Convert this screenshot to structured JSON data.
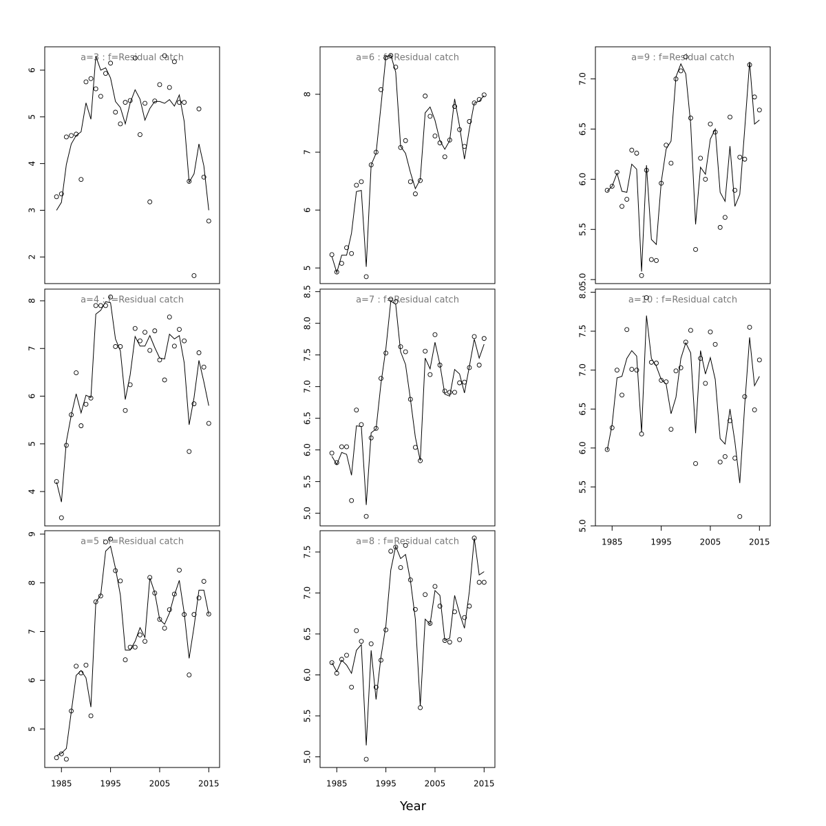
{
  "xlabel": "Year",
  "x": [
    1984,
    1985,
    1986,
    1987,
    1988,
    1989,
    1990,
    1991,
    1992,
    1993,
    1994,
    1995,
    1996,
    1997,
    1998,
    1999,
    2000,
    2001,
    2002,
    2003,
    2004,
    2005,
    2006,
    2007,
    2008,
    2009,
    2010,
    2011,
    2012,
    2013,
    2014,
    2015
  ],
  "xlim": [
    1981.6,
    2017.2
  ],
  "xticks": [
    1985,
    1995,
    2005,
    2015
  ],
  "chart_data": [
    {
      "type": "line",
      "title": "a=3  :  f=Residual catch",
      "ylim": [
        1.43,
        6.5
      ],
      "yticks": [
        2,
        3,
        4,
        5,
        6
      ],
      "series": [
        {
          "style": "points",
          "color": "#000000",
          "values": [
            3.29,
            3.35,
            4.57,
            4.6,
            4.63,
            3.66,
            5.75,
            5.82,
            5.6,
            5.44,
            5.93,
            6.15,
            5.1,
            4.85,
            5.31,
            5.35,
            6.26,
            4.62,
            5.29,
            3.18,
            5.34,
            5.69,
            6.31,
            5.63,
            6.18,
            5.31,
            5.31,
            3.62,
            1.6,
            5.17,
            3.71,
            2.77
          ]
        },
        {
          "style": "line",
          "color": "#000000",
          "values": [
            3.0,
            3.17,
            3.98,
            4.42,
            4.6,
            4.68,
            5.3,
            4.95,
            6.3,
            6.0,
            6.05,
            5.83,
            5.33,
            5.2,
            4.85,
            5.3,
            5.58,
            5.38,
            4.93,
            5.18,
            5.33,
            5.33,
            5.29,
            5.37,
            5.23,
            5.47,
            4.9,
            3.6,
            3.78,
            4.42,
            3.95,
            3.0
          ]
        }
      ]
    },
    {
      "type": "line",
      "title": "a=4  :  f=Residual catch",
      "ylim": [
        3.28,
        8.245
      ],
      "yticks": [
        4,
        5,
        6,
        7,
        8
      ],
      "series": [
        {
          "style": "points",
          "color": "#000000",
          "values": [
            4.21,
            3.45,
            4.97,
            5.61,
            6.49,
            5.38,
            5.83,
            5.96,
            7.9,
            7.9,
            7.9,
            8.08,
            7.04,
            7.04,
            5.7,
            6.24,
            7.42,
            7.16,
            7.34,
            6.96,
            7.37,
            6.76,
            6.34,
            7.66,
            7.05,
            7.4,
            7.16,
            4.84,
            5.84,
            6.91,
            6.61,
            5.43
          ]
        },
        {
          "style": "line",
          "color": "#000000",
          "values": [
            4.2,
            3.78,
            5.05,
            5.6,
            6.05,
            5.65,
            6.02,
            5.97,
            7.72,
            7.8,
            7.98,
            7.96,
            7.2,
            6.95,
            5.93,
            6.45,
            7.25,
            7.05,
            7.05,
            7.27,
            7.02,
            6.8,
            6.78,
            7.3,
            7.2,
            7.27,
            6.7,
            5.4,
            5.97,
            6.75,
            6.3,
            5.8
          ]
        }
      ]
    },
    {
      "type": "line",
      "title": "a=5  :  f=Residual catch",
      "ylim": [
        4.21,
        9.07
      ],
      "yticks": [
        5,
        6,
        7,
        8,
        9
      ],
      "series": [
        {
          "style": "points",
          "color": "#000000",
          "values": [
            4.41,
            4.49,
            4.38,
            5.37,
            6.29,
            6.15,
            6.31,
            5.27,
            7.61,
            7.73,
            8.84,
            8.9,
            8.25,
            8.04,
            6.42,
            6.68,
            6.68,
            6.93,
            6.8,
            8.11,
            7.79,
            7.25,
            7.07,
            7.45,
            7.77,
            8.26,
            7.35,
            6.11,
            7.35,
            7.69,
            8.03,
            7.36
          ]
        },
        {
          "style": "line",
          "color": "#000000",
          "values": [
            4.45,
            4.5,
            4.6,
            5.35,
            6.1,
            6.2,
            6.05,
            5.45,
            7.6,
            7.75,
            8.65,
            8.75,
            8.3,
            7.75,
            6.62,
            6.62,
            6.8,
            7.08,
            6.88,
            8.1,
            7.8,
            7.25,
            7.15,
            7.38,
            7.75,
            8.05,
            7.38,
            6.45,
            7.1,
            7.85,
            7.85,
            7.35
          ]
        }
      ]
    },
    {
      "type": "line",
      "title": "a=6  :  f=Residual catch",
      "ylim": [
        4.73,
        8.82
      ],
      "yticks": [
        5,
        6,
        7,
        8
      ],
      "series": [
        {
          "style": "points",
          "color": "#000000",
          "values": [
            5.23,
            4.93,
            5.08,
            5.35,
            5.25,
            6.43,
            6.49,
            4.85,
            6.78,
            7.0,
            8.08,
            8.63,
            8.67,
            8.47,
            7.08,
            7.2,
            6.49,
            6.28,
            6.51,
            7.97,
            7.62,
            7.28,
            7.16,
            6.92,
            7.21,
            7.79,
            7.39,
            7.1,
            7.53,
            7.85,
            7.91,
            7.99
          ]
        },
        {
          "style": "line",
          "color": "#000000",
          "values": [
            5.2,
            4.92,
            5.22,
            5.22,
            5.6,
            6.32,
            6.34,
            5.02,
            6.78,
            6.98,
            7.8,
            8.65,
            8.68,
            8.38,
            7.1,
            6.98,
            6.65,
            6.37,
            6.53,
            7.68,
            7.78,
            7.55,
            7.2,
            7.05,
            7.2,
            7.92,
            7.45,
            6.88,
            7.4,
            7.85,
            7.88,
            7.98
          ]
        }
      ]
    },
    {
      "type": "line",
      "title": "a=7  :  f=Residual catch",
      "ylim": [
        4.8,
        8.54
      ],
      "yticks": [
        {
          "value": 5,
          "label": "5.0"
        },
        5.5,
        {
          "value": 6,
          "label": "6.0"
        },
        6.5,
        {
          "value": 7,
          "label": "7.0"
        },
        7.5,
        {
          "value": 8,
          "label": "8.0"
        },
        8.5
      ],
      "series": [
        {
          "style": "points",
          "color": "#000000",
          "values": [
            5.95,
            5.8,
            6.05,
            6.05,
            5.2,
            6.63,
            6.4,
            4.95,
            6.19,
            6.34,
            7.13,
            7.53,
            8.38,
            8.34,
            7.63,
            7.55,
            6.8,
            6.04,
            5.83,
            7.56,
            7.19,
            7.82,
            7.34,
            6.93,
            6.91,
            6.91,
            7.06,
            7.07,
            7.3,
            7.79,
            7.34,
            7.76
          ]
        },
        {
          "style": "line",
          "color": "#000000",
          "values": [
            5.9,
            5.77,
            5.96,
            5.93,
            5.6,
            6.38,
            6.37,
            5.13,
            6.27,
            6.33,
            7.05,
            7.6,
            8.35,
            8.3,
            7.55,
            7.35,
            6.8,
            6.2,
            5.83,
            7.45,
            7.28,
            7.7,
            7.35,
            6.88,
            6.85,
            7.27,
            7.2,
            6.9,
            7.32,
            7.75,
            7.45,
            7.67
          ]
        }
      ]
    },
    {
      "type": "line",
      "title": "a=8  :  f=Residual catch",
      "ylim": [
        4.87,
        7.76
      ],
      "yticks": [
        {
          "value": 5,
          "label": "5.0"
        },
        5.5,
        {
          "value": 6,
          "label": "6.0"
        },
        6.5,
        {
          "value": 7,
          "label": "7.0"
        },
        7.5
      ],
      "series": [
        {
          "style": "points",
          "color": "#000000",
          "values": [
            6.15,
            6.02,
            6.19,
            6.24,
            5.85,
            6.54,
            6.41,
            4.97,
            6.38,
            5.85,
            6.18,
            6.55,
            7.51,
            7.56,
            7.31,
            7.58,
            7.16,
            6.8,
            5.6,
            6.98,
            6.63,
            7.08,
            6.84,
            6.42,
            6.4,
            6.77,
            6.43,
            6.7,
            6.84,
            7.67,
            7.13,
            7.13
          ]
        },
        {
          "style": "line",
          "color": "#000000",
          "values": [
            6.15,
            6.04,
            6.18,
            6.12,
            6.02,
            6.3,
            6.37,
            5.14,
            6.3,
            5.7,
            6.22,
            6.6,
            7.28,
            7.57,
            7.42,
            7.47,
            7.15,
            6.68,
            5.62,
            6.68,
            6.62,
            7.03,
            6.97,
            6.42,
            6.45,
            6.97,
            6.75,
            6.57,
            7.02,
            7.67,
            7.22,
            7.26
          ]
        }
      ]
    },
    {
      "type": "line",
      "title": "a=9  :  f=Residual catch",
      "ylim": [
        4.96,
        7.32
      ],
      "yticks": [
        {
          "value": 5,
          "label": "5.0"
        },
        5.5,
        {
          "value": 6,
          "label": "6.0"
        },
        6.5,
        {
          "value": 7,
          "label": "7.0"
        }
      ],
      "series": [
        {
          "style": "points",
          "color": "#000000",
          "values": [
            5.89,
            5.93,
            6.07,
            5.73,
            5.8,
            6.29,
            6.26,
            5.04,
            6.09,
            5.2,
            5.19,
            5.96,
            6.34,
            6.16,
            7.0,
            7.08,
            7.22,
            6.61,
            5.3,
            6.21,
            6.0,
            6.55,
            6.47,
            5.52,
            5.62,
            6.62,
            5.89,
            6.22,
            6.2,
            7.14,
            6.82,
            6.69
          ]
        },
        {
          "style": "line",
          "color": "#000000",
          "values": [
            5.88,
            5.93,
            6.06,
            5.88,
            5.87,
            6.15,
            6.1,
            5.08,
            6.14,
            5.4,
            5.35,
            5.97,
            6.3,
            6.38,
            7.02,
            7.15,
            7.05,
            6.55,
            5.55,
            6.12,
            6.05,
            6.4,
            6.5,
            5.87,
            5.78,
            6.33,
            5.73,
            5.85,
            6.5,
            7.17,
            6.55,
            6.59
          ]
        }
      ]
    },
    {
      "type": "line",
      "title": "a=10  :  f=Residual catch",
      "ylim": [
        5.0,
        8.04
      ],
      "yticks": [
        {
          "value": 5,
          "label": "5.0"
        },
        5.5,
        {
          "value": 6,
          "label": "6.0"
        },
        6.5,
        {
          "value": 7,
          "label": "7.0"
        },
        7.5,
        {
          "value": 8,
          "label": "8.0"
        }
      ],
      "series": [
        {
          "style": "points",
          "color": "#000000",
          "values": [
            5.98,
            6.26,
            7.0,
            6.68,
            7.52,
            7.01,
            7.0,
            6.18,
            7.93,
            7.1,
            7.09,
            6.87,
            6.85,
            6.24,
            6.99,
            7.03,
            7.36,
            7.51,
            5.8,
            7.15,
            6.83,
            7.49,
            7.33,
            5.82,
            5.89,
            6.35,
            5.87,
            5.12,
            6.66,
            7.55,
            6.49,
            7.13
          ]
        },
        {
          "style": "line",
          "color": "#000000",
          "values": [
            5.97,
            6.3,
            6.9,
            6.92,
            7.15,
            7.25,
            7.18,
            6.2,
            7.7,
            7.15,
            7.05,
            6.88,
            6.82,
            6.44,
            6.65,
            7.15,
            7.35,
            7.22,
            6.19,
            7.25,
            6.95,
            7.16,
            6.88,
            6.12,
            6.05,
            6.5,
            6.08,
            5.55,
            6.55,
            7.42,
            6.8,
            6.92
          ]
        }
      ]
    }
  ]
}
